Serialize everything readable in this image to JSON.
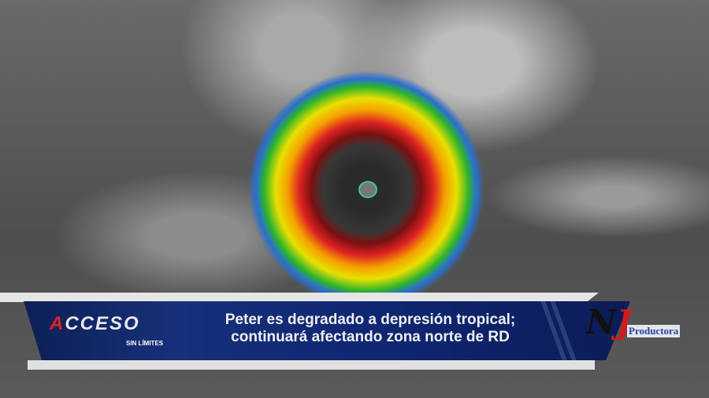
{
  "broadcast": {
    "show_logo": "ACCESO",
    "show_tagline": "SIN LÍMITES",
    "headline_line1": "Peter es degradado a depresión tropical;",
    "headline_line2": "continuará afectando zona norte de RD",
    "producer_logo": "NJ",
    "producer_name": "Productora",
    "colors": {
      "band": "#17307a",
      "accent_red": "#d22222",
      "text": "#f0f0f0"
    }
  }
}
